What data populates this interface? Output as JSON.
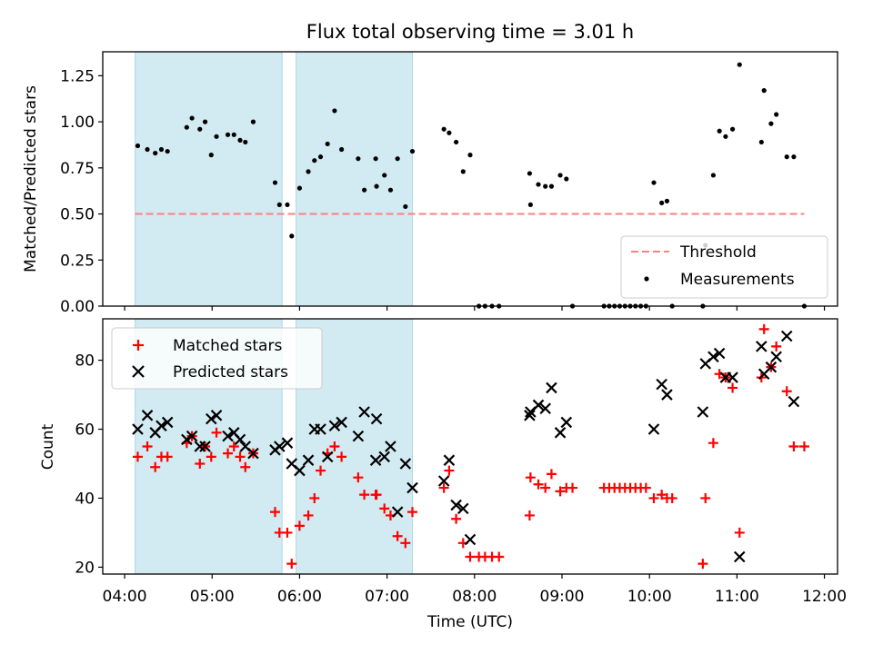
{
  "figure_title": "Flux total observing time = 3.01 h",
  "x_axis": {
    "label": "Time (UTC)",
    "ticks": [
      "04:00",
      "05:00",
      "06:00",
      "07:00",
      "08:00",
      "09:00",
      "10:00",
      "11:00",
      "12:00"
    ],
    "tick_hours": [
      4,
      5,
      6,
      7,
      8,
      9,
      10,
      11,
      12
    ],
    "range_hours": [
      3.75,
      12.15
    ]
  },
  "observing_windows_hours": [
    [
      4.12,
      5.8
    ],
    [
      5.96,
      7.29
    ]
  ],
  "colors": {
    "window": "#add8e6",
    "threshold": "#ff7f7f",
    "measurements": "#000000",
    "matched": "#ff0000",
    "predicted": "#000000"
  },
  "chart_data": [
    {
      "type": "scatter",
      "title": "Flux total observing time = 3.01 h",
      "xlabel": "Time (UTC)",
      "ylabel": "Matched/Predicted stars",
      "ylim": [
        0,
        1.38
      ],
      "yticks": [
        "0.00",
        "0.25",
        "0.50",
        "0.75",
        "1.00",
        "1.25"
      ],
      "ytick_values": [
        0,
        0.25,
        0.5,
        0.75,
        1.0,
        1.25
      ],
      "legend_position": "lower-right",
      "threshold": {
        "name": "Threshold",
        "value": 0.5,
        "x_range": [
          4.12,
          11.77
        ]
      },
      "series": [
        {
          "name": "Measurements",
          "x": [
            4.15,
            4.26,
            4.35,
            4.42,
            4.49,
            4.71,
            4.77,
            4.86,
            4.92,
            4.99,
            5.05,
            5.18,
            5.25,
            5.32,
            5.38,
            5.47,
            5.72,
            5.77,
            5.86,
            5.91,
            6.0,
            6.1,
            6.17,
            6.24,
            6.32,
            6.4,
            6.48,
            6.67,
            6.74,
            6.87,
            6.88,
            6.97,
            7.04,
            7.12,
            7.21,
            7.29,
            7.65,
            7.71,
            7.79,
            7.87,
            7.95,
            8.05,
            8.12,
            8.2,
            8.28,
            8.63,
            8.64,
            8.73,
            8.81,
            8.88,
            8.98,
            9.05,
            9.12,
            9.48,
            9.54,
            9.6,
            9.66,
            9.72,
            9.78,
            9.84,
            9.9,
            9.96,
            10.05,
            10.14,
            10.2,
            10.26,
            10.61,
            10.64,
            10.73,
            10.8,
            10.87,
            10.95,
            11.03,
            11.28,
            11.31,
            11.39,
            11.45,
            11.57,
            11.65,
            11.77
          ],
          "y": [
            0.87,
            0.85,
            0.83,
            0.85,
            0.84,
            0.97,
            1.02,
            0.96,
            1.0,
            0.82,
            0.92,
            0.93,
            0.93,
            0.9,
            0.89,
            1.0,
            0.67,
            0.55,
            0.55,
            0.38,
            0.64,
            0.73,
            0.79,
            0.81,
            0.88,
            1.06,
            0.85,
            0.8,
            0.63,
            0.8,
            0.65,
            0.71,
            0.63,
            0.8,
            0.54,
            0.84,
            0.96,
            0.94,
            0.89,
            0.73,
            0.82,
            0.0,
            0.0,
            0.0,
            0.0,
            0.72,
            0.55,
            0.66,
            0.65,
            0.65,
            0.71,
            0.69,
            0.0,
            0.0,
            0.0,
            0.0,
            0.0,
            0.0,
            0.0,
            0.0,
            0.0,
            0.0,
            0.67,
            0.56,
            0.57,
            0.0,
            0.0,
            0.33,
            0.71,
            0.95,
            0.92,
            0.96,
            1.31,
            0.89,
            1.17,
            0.99,
            1.04,
            0.81,
            0.81,
            0.0
          ]
        }
      ]
    },
    {
      "type": "scatter",
      "xlabel": "Time (UTC)",
      "ylabel": "Count",
      "ylim": [
        18,
        92
      ],
      "yticks": [
        "20",
        "40",
        "60",
        "80"
      ],
      "ytick_values": [
        20,
        40,
        60,
        80
      ],
      "legend_position": "upper-left",
      "series": [
        {
          "name": "Matched stars",
          "marker": "plus",
          "x": [
            4.15,
            4.26,
            4.35,
            4.42,
            4.49,
            4.71,
            4.77,
            4.86,
            4.92,
            4.99,
            5.05,
            5.18,
            5.25,
            5.32,
            5.38,
            5.47,
            5.72,
            5.77,
            5.86,
            5.91,
            6.0,
            6.1,
            6.17,
            6.24,
            6.32,
            6.4,
            6.48,
            6.67,
            6.74,
            6.87,
            6.88,
            6.97,
            7.04,
            7.12,
            7.21,
            7.29,
            7.65,
            7.71,
            7.79,
            7.87,
            7.95,
            8.05,
            8.12,
            8.2,
            8.28,
            8.63,
            8.64,
            8.73,
            8.81,
            8.88,
            8.98,
            9.05,
            9.12,
            9.48,
            9.54,
            9.6,
            9.66,
            9.72,
            9.78,
            9.84,
            9.9,
            9.96,
            10.05,
            10.14,
            10.2,
            10.26,
            10.61,
            10.64,
            10.73,
            10.8,
            10.87,
            10.95,
            11.03,
            11.28,
            11.31,
            11.39,
            11.45,
            11.57,
            11.65,
            11.77
          ],
          "y": [
            52,
            55,
            49,
            52,
            52,
            56,
            58,
            50,
            55,
            52,
            59,
            53,
            55,
            52,
            49,
            53,
            36,
            30,
            30,
            21,
            32,
            35,
            40,
            48,
            53,
            55,
            52,
            46,
            41,
            41,
            41,
            37,
            35,
            29,
            27,
            36,
            43,
            48,
            34,
            27,
            23,
            23,
            23,
            23,
            23,
            35,
            46,
            44,
            43,
            47,
            42,
            43,
            43,
            43,
            43,
            43,
            43,
            43,
            43,
            43,
            43,
            43,
            40,
            41,
            40,
            40,
            21,
            40,
            56,
            76,
            75,
            72,
            30,
            75,
            89,
            78,
            84,
            71,
            55,
            55
          ]
        },
        {
          "name": "Predicted stars",
          "marker": "x",
          "x": [
            4.15,
            4.26,
            4.35,
            4.42,
            4.49,
            4.71,
            4.77,
            4.86,
            4.92,
            4.99,
            5.05,
            5.18,
            5.25,
            5.32,
            5.38,
            5.47,
            5.72,
            5.77,
            5.86,
            5.91,
            6.0,
            6.1,
            6.17,
            6.24,
            6.32,
            6.4,
            6.48,
            6.67,
            6.74,
            6.87,
            6.88,
            6.97,
            7.04,
            7.12,
            7.21,
            7.29,
            7.65,
            7.71,
            7.79,
            7.87,
            7.95,
            8.63,
            8.64,
            8.73,
            8.81,
            8.88,
            8.98,
            9.05,
            10.05,
            10.14,
            10.2,
            10.61,
            10.64,
            10.73,
            10.8,
            10.87,
            10.95,
            11.03,
            11.28,
            11.31,
            11.39,
            11.45,
            11.57,
            11.65
          ],
          "y": [
            60,
            64,
            59,
            61,
            62,
            57,
            58,
            55,
            55,
            63,
            64,
            58,
            59,
            57,
            55,
            53,
            54,
            55,
            56,
            50,
            48,
            51,
            60,
            60,
            52,
            61,
            62,
            58,
            65,
            51,
            63,
            52,
            55,
            36,
            50,
            43,
            45,
            51,
            38,
            37,
            28,
            64,
            65,
            67,
            66,
            72,
            59,
            62,
            60,
            73,
            70,
            65,
            79,
            81,
            82,
            75,
            75,
            23,
            84,
            76,
            78,
            81,
            87,
            68
          ]
        }
      ]
    }
  ]
}
